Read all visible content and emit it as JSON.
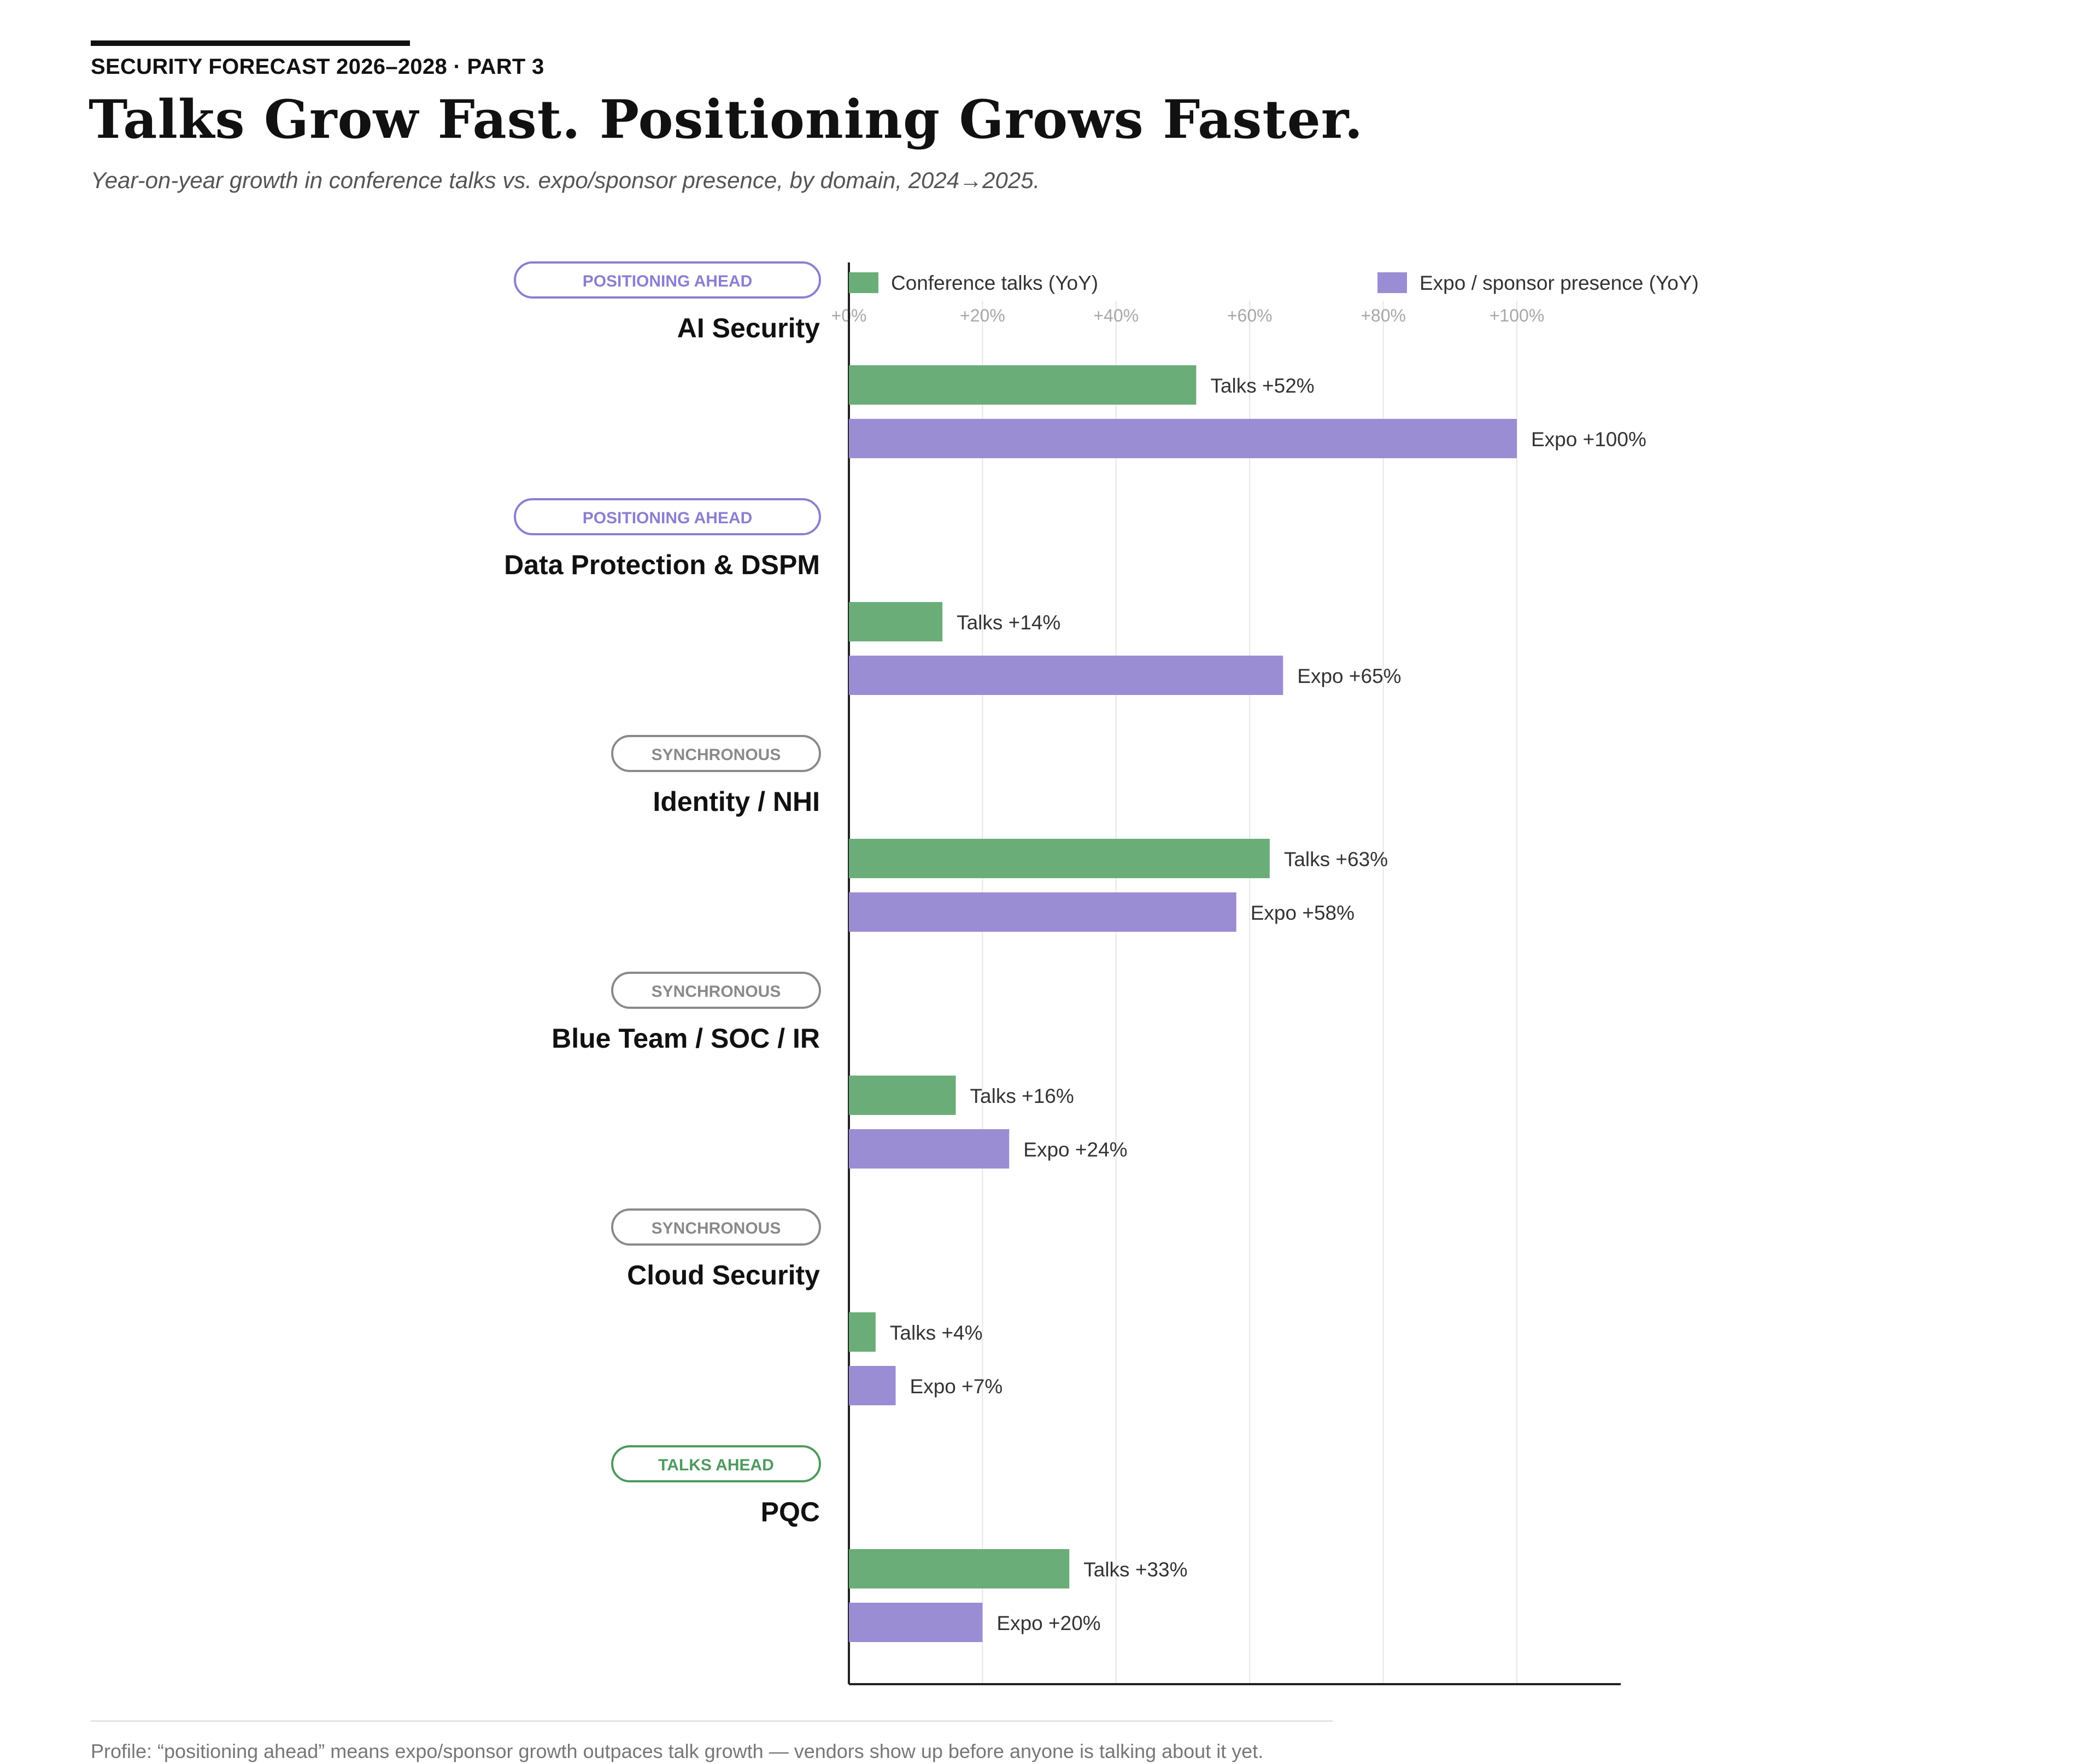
{
  "header": {
    "kicker": "SECURITY FORECAST 2026–2028 · PART 3",
    "title": "Talks Grow Fast. Positioning Grows Faster.",
    "subtitle": "Year-on-year growth in conference talks vs. expo/sponsor presence, by domain, 2024→2025."
  },
  "footer": {
    "note": "Profile: “positioning ahead” means expo/sponsor growth outpaces talk growth — vendors show up before anyone is talking about it yet."
  },
  "colors": {
    "talks": "#6aad78",
    "expo": "#9b8dd3",
    "badge_positioning": "#8b7fd0",
    "badge_synchronous": "#8a8a8a",
    "badge_talks": "#4f9a5f",
    "grid": "#e6e6e6",
    "axis": "#222222"
  },
  "chart_data": {
    "type": "bar",
    "orientation": "horizontal",
    "xlim": [
      0,
      100
    ],
    "x_ticks": [
      "+0%",
      "+20%",
      "+40%",
      "+60%",
      "+80%",
      "+100%"
    ],
    "grid": true,
    "legend_placement": "top",
    "series": [
      {
        "name": "Conference talks (YoY)",
        "key": "talks"
      },
      {
        "name": "Expo / sponsor presence (YoY)",
        "key": "expo"
      }
    ],
    "categories": [
      {
        "name": "AI Security",
        "badge": "POSITIONING AHEAD",
        "badge_type": "positioning",
        "talks": 52,
        "expo": 100,
        "talks_label": "Talks +52%",
        "expo_label": "Expo +100%"
      },
      {
        "name": "Data Protection & DSPM",
        "badge": "POSITIONING AHEAD",
        "badge_type": "positioning",
        "talks": 14,
        "expo": 65,
        "talks_label": "Talks +14%",
        "expo_label": "Expo +65%"
      },
      {
        "name": "Identity / NHI",
        "badge": "SYNCHRONOUS",
        "badge_type": "synchronous",
        "talks": 63,
        "expo": 58,
        "talks_label": "Talks +63%",
        "expo_label": "Expo +58%"
      },
      {
        "name": "Blue Team / SOC / IR",
        "badge": "SYNCHRONOUS",
        "badge_type": "synchronous",
        "talks": 16,
        "expo": 24,
        "talks_label": "Talks +16%",
        "expo_label": "Expo +24%"
      },
      {
        "name": "Cloud Security",
        "badge": "SYNCHRONOUS",
        "badge_type": "synchronous",
        "talks": 4,
        "expo": 7,
        "talks_label": "Talks +4%",
        "expo_label": "Expo +7%"
      },
      {
        "name": "PQC",
        "badge": "TALKS AHEAD",
        "badge_type": "talks",
        "talks": 33,
        "expo": 20,
        "talks_label": "Talks +33%",
        "expo_label": "Expo +20%"
      }
    ]
  }
}
